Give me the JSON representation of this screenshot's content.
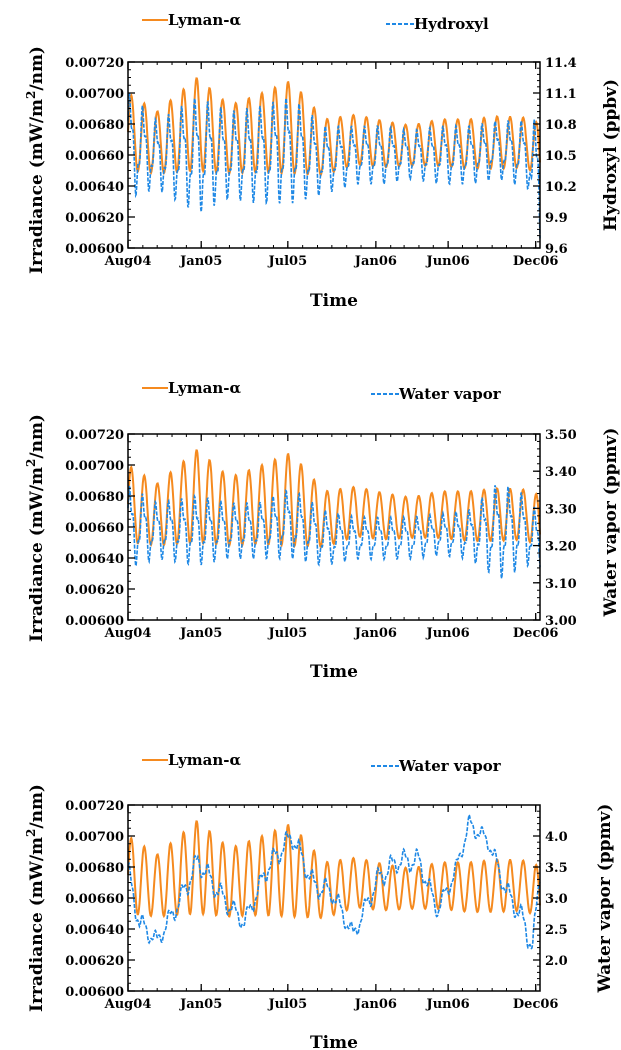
{
  "colors": {
    "lyman": "#f58a1f",
    "second": "#1e88e5",
    "axis": "#000000"
  },
  "chart_data": [
    {
      "type": "line",
      "x_ticks": [
        "Aug04",
        "Jan05",
        "Jul05",
        "Jan06",
        "Jun06",
        "Dec06"
      ],
      "xlabel": "Time",
      "ylabel_left": [
        "Irradiance (mW/m",
        "2",
        "/nm)"
      ],
      "ylabel_right": "Hydroxyl (ppbv)",
      "y_left_ticks": [
        "0.00600",
        "0.00620",
        "0.00640",
        "0.00660",
        "0.00680",
        "0.00700",
        "0.00720"
      ],
      "y_right_ticks": [
        "9.6",
        "9.9",
        "10.2",
        "10.5",
        "10.8",
        "11.1",
        "11.4"
      ],
      "legend": [
        "Lyman-α",
        "Hydroxyl"
      ],
      "ylim_left": [
        0.006,
        0.0072
      ],
      "ylim_right": [
        9.6,
        11.4
      ],
      "series": [
        {
          "name": "Lyman-α",
          "axis": "left",
          "x": [
            "2004-08-01",
            "2004-10-01",
            "2004-12-24",
            "2005-03-01",
            "2005-05-01",
            "2005-07-08",
            "2005-09-15",
            "2005-11-20",
            "2006-01-15",
            "2006-03-15",
            "2006-05-15",
            "2006-07-15",
            "2006-09-15",
            "2006-11-15",
            "2006-12-10"
          ],
          "y": [
            0.00675,
            0.00668,
            0.0068,
            0.0067,
            0.00674,
            0.00678,
            0.00665,
            0.0067,
            0.00667,
            0.00666,
            0.00668,
            0.00667,
            0.00668,
            0.00668,
            0.0066
          ],
          "amplitude": [
            0.00025,
            0.0002,
            0.0003,
            0.00022,
            0.00025,
            0.0003,
            0.00018,
            0.00016,
            0.00015,
            0.00013,
            0.00015,
            0.00016,
            0.00017,
            0.00016,
            0.0002
          ]
        },
        {
          "name": "Hydroxyl",
          "axis": "right",
          "x": [
            "2004-08-01",
            "2004-10-01",
            "2004-12-24",
            "2005-03-01",
            "2005-05-01",
            "2005-07-08",
            "2005-09-15",
            "2005-11-20",
            "2006-01-15",
            "2006-03-15",
            "2006-05-15",
            "2006-07-15",
            "2006-09-15",
            "2006-11-15",
            "2006-12-10"
          ],
          "y": [
            10.6,
            10.5,
            10.5,
            10.5,
            10.5,
            10.55,
            10.45,
            10.5,
            10.5,
            10.5,
            10.5,
            10.5,
            10.55,
            10.5,
            10.2
          ],
          "amplitude": [
            0.55,
            0.35,
            0.6,
            0.45,
            0.5,
            0.55,
            0.35,
            0.3,
            0.3,
            0.25,
            0.3,
            0.3,
            0.3,
            0.35,
            0.7
          ]
        }
      ]
    },
    {
      "type": "line",
      "x_ticks": [
        "Aug04",
        "Jan05",
        "Jul05",
        "Jan06",
        "Jun06",
        "Dec06"
      ],
      "xlabel": "Time",
      "ylabel_left": [
        "Irradiance (mW/m",
        "2",
        "/nm)"
      ],
      "ylabel_right": "Water vapor (ppmv)",
      "y_left_ticks": [
        "0.00600",
        "0.00620",
        "0.00640",
        "0.00660",
        "0.00680",
        "0.00700",
        "0.00720"
      ],
      "y_right_ticks": [
        "3.00",
        "3.10",
        "3.20",
        "3.30",
        "3.40",
        "3.50"
      ],
      "legend": [
        "Lyman-α",
        "Water vapor"
      ],
      "ylim_left": [
        0.006,
        0.0072
      ],
      "ylim_right": [
        3.0,
        3.5
      ],
      "series": [
        {
          "name": "Lyman-α",
          "axis": "left",
          "x": [
            "2004-08-01",
            "2004-10-01",
            "2004-12-24",
            "2005-03-01",
            "2005-05-01",
            "2005-07-08",
            "2005-09-15",
            "2005-11-20",
            "2006-01-15",
            "2006-03-15",
            "2006-05-15",
            "2006-07-15",
            "2006-09-15",
            "2006-11-15",
            "2006-12-10"
          ],
          "y": [
            0.00675,
            0.00668,
            0.0068,
            0.0067,
            0.00674,
            0.00678,
            0.00665,
            0.0067,
            0.00667,
            0.00666,
            0.00668,
            0.00667,
            0.00668,
            0.00668,
            0.0066
          ],
          "amplitude": [
            0.00025,
            0.0002,
            0.0003,
            0.00022,
            0.00025,
            0.0003,
            0.00018,
            0.00016,
            0.00015,
            0.00013,
            0.00015,
            0.00016,
            0.00017,
            0.00016,
            0.0002
          ]
        },
        {
          "name": "Water vapor",
          "axis": "right",
          "x": [
            "2004-08-01",
            "2004-10-01",
            "2004-12-24",
            "2005-03-01",
            "2005-05-01",
            "2005-07-08",
            "2005-09-15",
            "2005-11-20",
            "2006-01-15",
            "2006-03-15",
            "2006-05-15",
            "2006-07-15",
            "2006-09-15",
            "2006-11-15",
            "2006-12-10"
          ],
          "y": [
            3.25,
            3.24,
            3.24,
            3.24,
            3.24,
            3.26,
            3.22,
            3.22,
            3.22,
            3.22,
            3.23,
            3.23,
            3.24,
            3.24,
            3.2
          ],
          "amplitude": [
            0.12,
            0.08,
            0.1,
            0.08,
            0.08,
            0.1,
            0.08,
            0.06,
            0.06,
            0.06,
            0.06,
            0.07,
            0.14,
            0.1,
            0.08
          ]
        }
      ]
    },
    {
      "type": "line",
      "x_ticks": [
        "Aug04",
        "Jan05",
        "Jul05",
        "Jan06",
        "Jun06",
        "Dec06"
      ],
      "xlabel": "Time",
      "ylabel_left": [
        "Irradiance (mW/m",
        "2",
        "/nm)"
      ],
      "ylabel_right": "Water vapor (ppmv)",
      "y_left_ticks": [
        "0.00600",
        "0.00620",
        "0.00640",
        "0.00660",
        "0.00680",
        "0.00700",
        "0.00720"
      ],
      "y_right_ticks": [
        "2.0",
        "2.5",
        "3.0",
        "3.5",
        "4.0"
      ],
      "legend": [
        "Lyman-α",
        "Water vapor"
      ],
      "ylim_left": [
        0.006,
        0.0072
      ],
      "ylim_right": [
        1.5,
        4.5
      ],
      "series": [
        {
          "name": "Lyman-α",
          "axis": "left",
          "x": [
            "2004-08-01",
            "2004-10-01",
            "2004-12-24",
            "2005-03-01",
            "2005-05-01",
            "2005-07-08",
            "2005-09-15",
            "2005-11-20",
            "2006-01-15",
            "2006-03-15",
            "2006-05-15",
            "2006-07-15",
            "2006-09-15",
            "2006-11-15",
            "2006-12-10"
          ],
          "y": [
            0.00675,
            0.00668,
            0.0068,
            0.0067,
            0.00674,
            0.00678,
            0.00665,
            0.0067,
            0.00667,
            0.00666,
            0.00668,
            0.00667,
            0.00668,
            0.00668,
            0.0066
          ],
          "amplitude": [
            0.00025,
            0.0002,
            0.0003,
            0.00022,
            0.00025,
            0.0003,
            0.00018,
            0.00016,
            0.00015,
            0.00013,
            0.00015,
            0.00016,
            0.00017,
            0.00016,
            0.0002
          ]
        },
        {
          "name": "Water vapor",
          "axis": "right",
          "x": [
            "2004-08-01",
            "2004-08-25",
            "2004-10-01",
            "2004-11-20",
            "2004-12-25",
            "2005-02-15",
            "2005-04-01",
            "2005-05-20",
            "2005-07-10",
            "2005-08-25",
            "2005-10-01",
            "2005-11-15",
            "2006-01-05",
            "2006-02-15",
            "2006-04-01",
            "2006-05-10",
            "2006-06-15",
            "2006-07-15",
            "2006-08-25",
            "2006-10-01",
            "2006-11-01",
            "2006-11-25",
            "2006-12-10"
          ],
          "y": [
            3.4,
            2.6,
            2.3,
            3.0,
            3.6,
            3.0,
            2.6,
            3.5,
            4.0,
            3.2,
            3.1,
            2.4,
            3.3,
            3.6,
            3.6,
            2.8,
            3.4,
            4.2,
            3.9,
            3.1,
            2.7,
            2.2,
            3.4
          ],
          "amplitude": [
            0.25,
            0.2,
            0.15,
            0.2,
            0.2,
            0.2,
            0.15,
            0.2,
            0.2,
            0.2,
            0.2,
            0.15,
            0.2,
            0.2,
            0.2,
            0.15,
            0.15,
            0.15,
            0.15,
            0.2,
            0.2,
            0.25,
            0.2
          ]
        }
      ]
    }
  ]
}
